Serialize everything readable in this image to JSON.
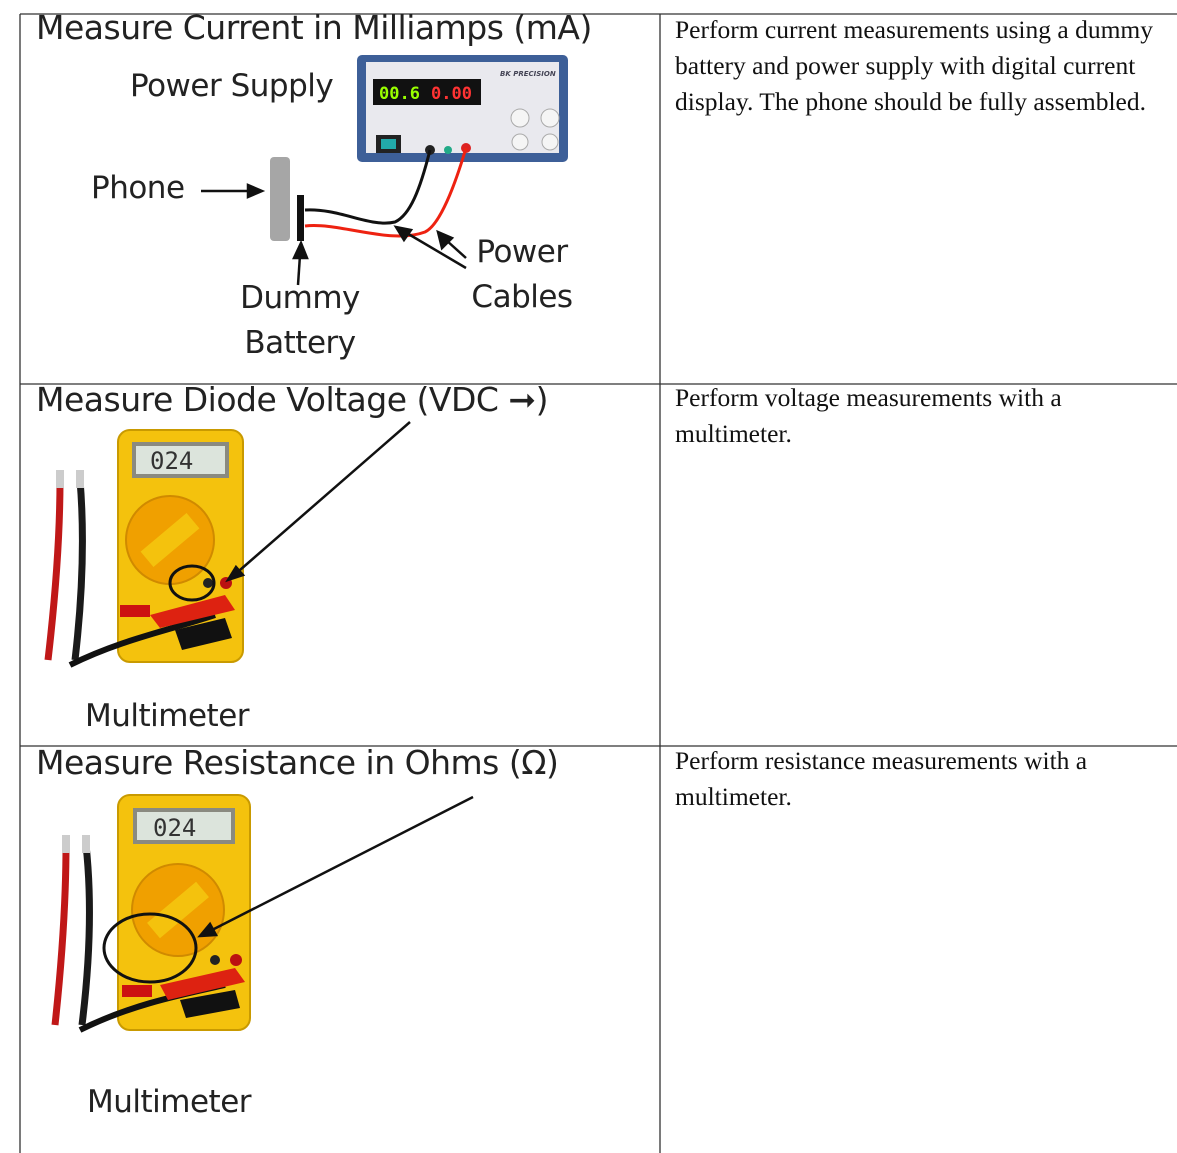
{
  "table": {
    "rows": [
      {
        "illustration": {
          "title": "Measure Current in Milliamps (mA)",
          "labels": {
            "power_supply": "Power Supply",
            "phone": "Phone",
            "dummy_battery": "Dummy Battery",
            "power_cables": "Power Cables"
          },
          "readings": [
            "00.6",
            "0.00"
          ]
        },
        "description": "Perform current measurements using a dummy battery and power supply with digital current display.  The phone should be fully assembled."
      },
      {
        "illustration": {
          "title": "Measure Diode Voltage (VDC ➞)",
          "labels": {
            "multimeter": "Multimeter"
          },
          "readings": [
            "024"
          ]
        },
        "description": "Perform voltage measurements with a multimeter."
      },
      {
        "illustration": {
          "title": "Measure Resistance in Ohms (Ω)",
          "labels": {
            "multimeter": "Multimeter"
          },
          "readings": [
            "024"
          ]
        },
        "description": "Perform resistance measurements with a multimeter."
      }
    ]
  }
}
